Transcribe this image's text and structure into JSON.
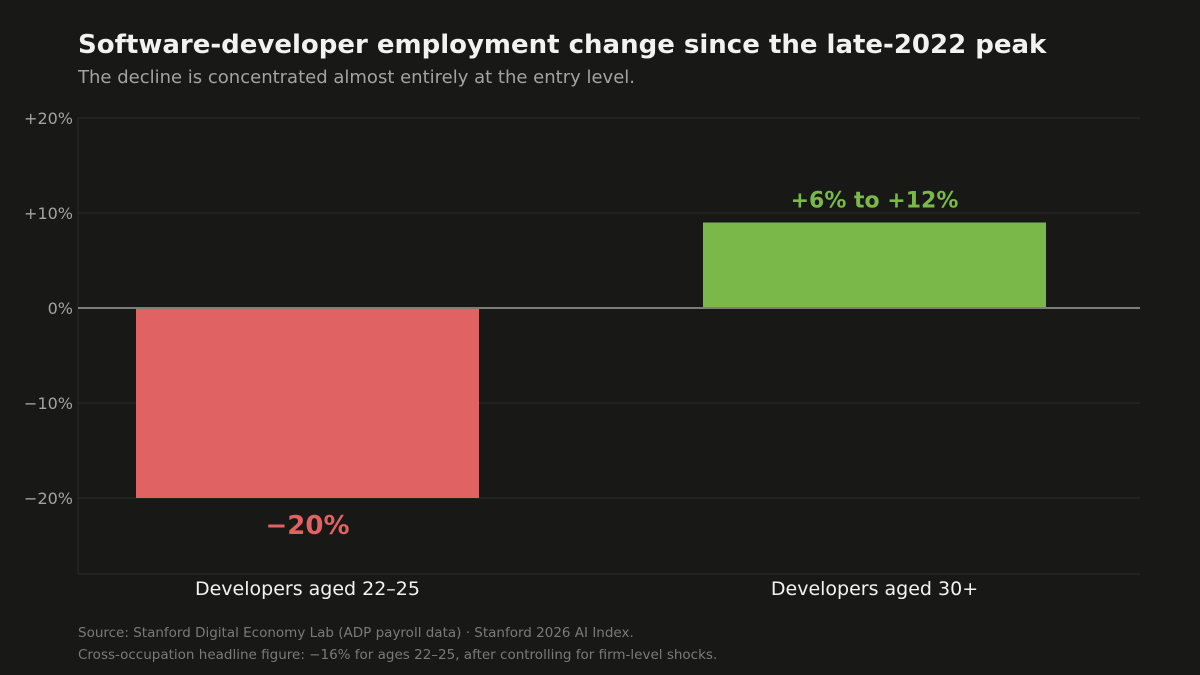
{
  "header": {
    "title": "Software-developer employment change since the late-2022 peak",
    "subtitle": "The decline is concentrated almost entirely at the entry level."
  },
  "chart_data": {
    "type": "bar",
    "categories": [
      "Developers aged 22–25",
      "Developers aged 30+"
    ],
    "values": [
      -20,
      9
    ],
    "data_labels": [
      "−20%",
      "+6% to +12%"
    ],
    "bar_colors": [
      "#e06262",
      "#7ab84a"
    ],
    "y_ticks": [
      20,
      10,
      0,
      -10,
      -20
    ],
    "y_tick_labels": [
      "+20%",
      "+10%",
      "0%",
      "−10%",
      "−20%"
    ],
    "ylim": [
      -28,
      20
    ],
    "grid": true,
    "legend": "none",
    "xlabel": "",
    "ylabel": ""
  },
  "footer": {
    "source": "Source: Stanford Digital Economy Lab (ADP payroll data) · Stanford 2026 AI Index.",
    "note": "Cross-occupation headline figure: −16% for ages 22–25, after controlling for firm-level shocks."
  }
}
